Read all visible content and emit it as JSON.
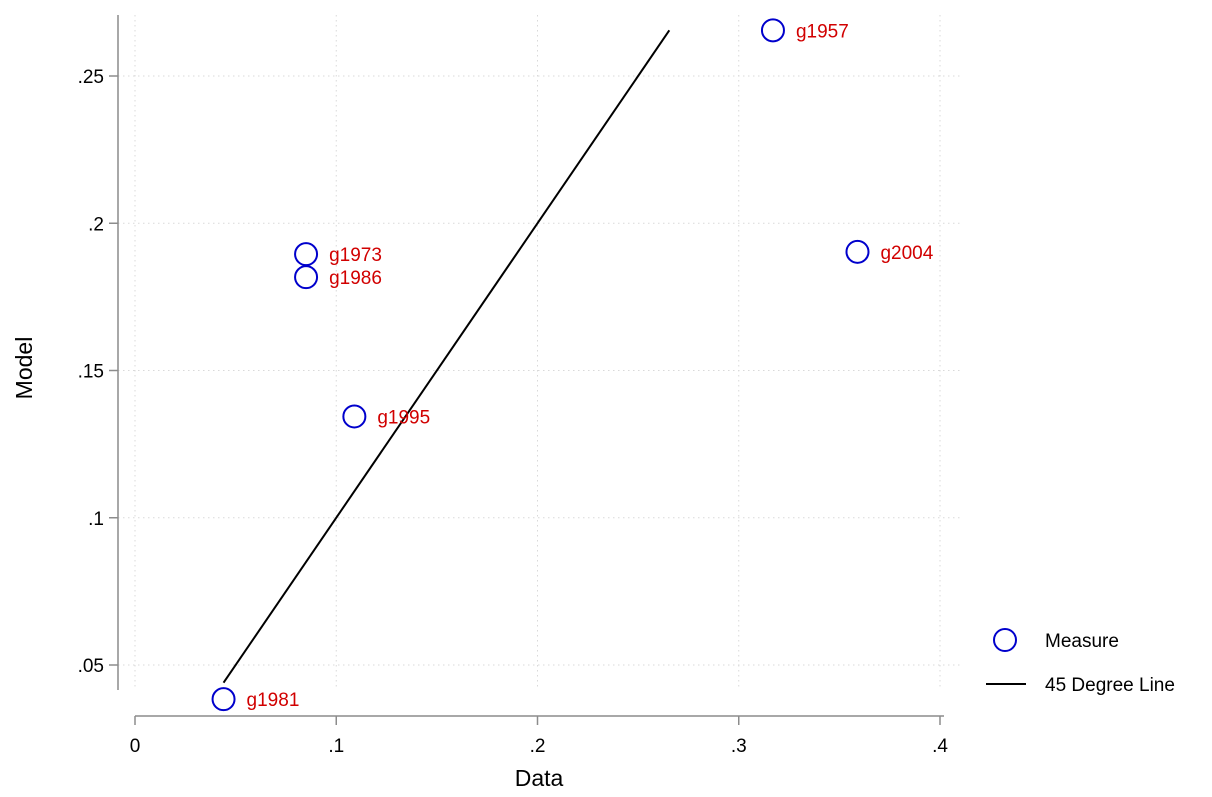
{
  "chart_data": {
    "type": "scatter",
    "title": "",
    "xlabel": "Data",
    "ylabel": "Model",
    "xlim": [
      0,
      0.4
    ],
    "ylim": [
      0.05,
      0.25
    ],
    "x_ticks": [
      {
        "value": 0,
        "label": "0"
      },
      {
        "value": 0.1,
        "label": ".1"
      },
      {
        "value": 0.2,
        "label": ".2"
      },
      {
        "value": 0.3,
        "label": ".3"
      },
      {
        "value": 0.4,
        "label": ".4"
      }
    ],
    "y_ticks": [
      {
        "value": 0.05,
        "label": ".05"
      },
      {
        "value": 0.1,
        "label": ".1"
      },
      {
        "value": 0.15,
        "label": ".15"
      },
      {
        "value": 0.2,
        "label": ".2"
      },
      {
        "value": 0.25,
        "label": ".25"
      }
    ],
    "grid": true,
    "legend_position": "bottom-right",
    "series": [
      {
        "name": "Measure",
        "kind": "scatter",
        "marker": "hollow-circle",
        "color": "#0000cc",
        "label_color": "#d10000",
        "points": [
          {
            "label": "g1957",
            "x": 0.317,
            "y": 0.2655
          },
          {
            "label": "g1973",
            "x": 0.085,
            "y": 0.1895
          },
          {
            "label": "g1986",
            "x": 0.085,
            "y": 0.1817
          },
          {
            "label": "g1995",
            "x": 0.109,
            "y": 0.1344
          },
          {
            "label": "g2004",
            "x": 0.359,
            "y": 0.1903
          },
          {
            "label": "g1981",
            "x": 0.044,
            "y": 0.0384
          }
        ]
      },
      {
        "name": "45 Degree Line",
        "kind": "line",
        "color": "#000000",
        "x": [
          0.044,
          0.2655
        ],
        "y": [
          0.044,
          0.2655
        ]
      }
    ]
  }
}
